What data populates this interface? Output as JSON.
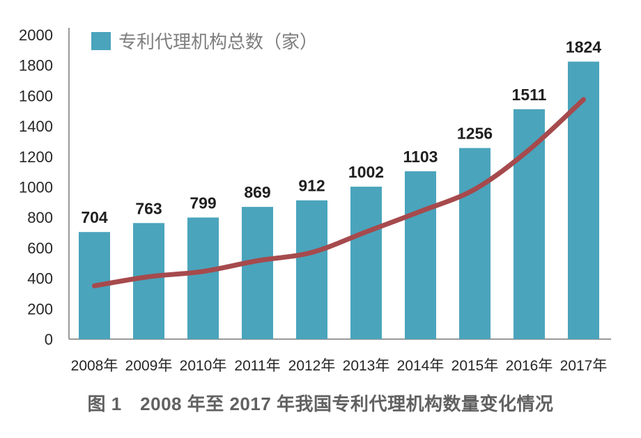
{
  "figure": {
    "caption": "图 1　2008 年至 2017 年我国专利代理机构数量变化情况"
  },
  "chart_data": {
    "type": "bar",
    "title": "",
    "xlabel": "",
    "ylabel": "",
    "categories": [
      "2008年",
      "2009年",
      "2010年",
      "2011年",
      "2012年",
      "2013年",
      "2014年",
      "2015年",
      "2016年",
      "2017年"
    ],
    "series": [
      {
        "name": "专利代理机构总数（家）",
        "type": "bar",
        "color": "#4AA4BC",
        "values": [
          704,
          763,
          799,
          869,
          912,
          1002,
          1103,
          1256,
          1511,
          1824
        ],
        "data_labels": true,
        "in_legend": true
      },
      {
        "name": "趋势线",
        "type": "line",
        "color": "#A64A4D",
        "values": [
          350,
          410,
          445,
          515,
          570,
          705,
          840,
          985,
          1245,
          1575
        ],
        "estimated": true,
        "data_labels": false,
        "in_legend": false
      }
    ],
    "ylim": [
      0,
      2000
    ],
    "y_ticks": [
      0,
      200,
      400,
      600,
      800,
      1000,
      1200,
      1400,
      1600,
      1800,
      2000
    ],
    "grid": false,
    "legend_position": "top-left",
    "legend": {
      "label": "专利代理机构总数（家）",
      "swatch_color": "#4AA4BC"
    }
  },
  "colors": {
    "bar": "#4AA4BC",
    "trend_line": "#A64A4D",
    "axis": "#999999",
    "tick_label": "#262626",
    "value_label": "#1F1F1F",
    "legend_text": "#7E7E7E",
    "caption": "#616161",
    "background": "#FFFFFF"
  }
}
